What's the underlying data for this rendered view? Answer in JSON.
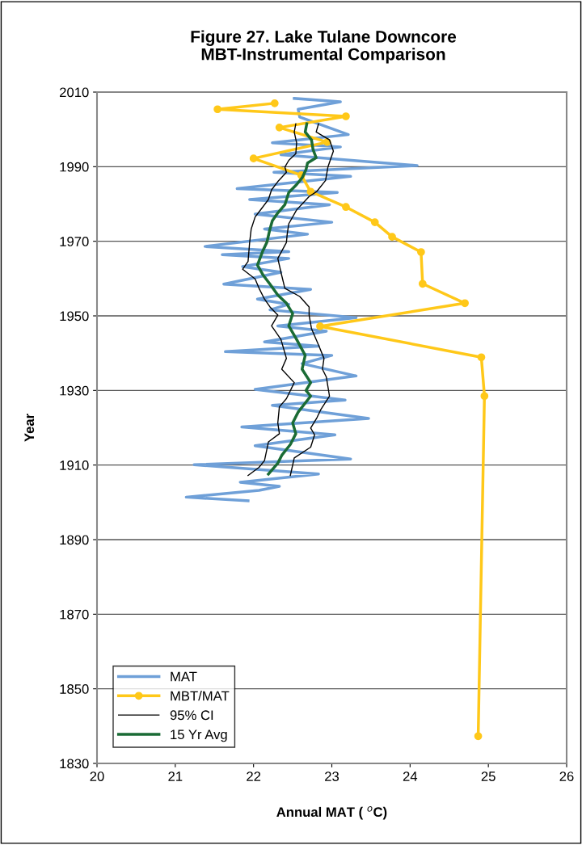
{
  "chart_data": {
    "type": "line",
    "title": "Figure 27. Lake Tulane Downcore\nMBT-Instrumental Comparison",
    "xlabel": "Annual MAT ( $^{o}$C)",
    "ylabel": "Year",
    "xlim": [
      20,
      26
    ],
    "xticks": [
      20,
      21,
      22,
      23,
      24,
      25,
      26
    ],
    "ylim": [
      1830,
      2010
    ],
    "yticks": [
      1830,
      1850,
      1870,
      1890,
      1910,
      1930,
      1950,
      1970,
      1990,
      2010
    ],
    "grid": "y",
    "legend": "bottom left",
    "series": [
      {
        "name": "MAT",
        "color": "#6fa0d8",
        "x": [
          22.52,
          23.11,
          22.57,
          22.59,
          23.21,
          22.24,
          23.11,
          22.35,
          24.09,
          22.26,
          23.24,
          21.79,
          23.07,
          21.95,
          22.97,
          22.02,
          23.0,
          22.14,
          22.69,
          21.38,
          22.45,
          21.6,
          22.45,
          21.86,
          22.35,
          21.62,
          22.73,
          22.05,
          22.45,
          22.21,
          23.31,
          22.31,
          22.93,
          22.14,
          22.83,
          21.64,
          23.0,
          22.62,
          23.31,
          22.02,
          23.17,
          22.24,
          23.47,
          21.85,
          23.04,
          22.02,
          23.24,
          21.24,
          22.83,
          21.83,
          22.33,
          22.07,
          21.14,
          21.93
        ],
        "values": [
          2008.3,
          2007.4,
          2005.4,
          2003.3,
          1998.6,
          1996.4,
          1995.3,
          1993.2,
          1990.3,
          1988.5,
          1987.4,
          1984.1,
          1983.1,
          1981.2,
          1979.8,
          1977.3,
          1975.1,
          1973.3,
          1971.9,
          1968.6,
          1967.2,
          1966.4,
          1965.4,
          1963.2,
          1961.7,
          1958.5,
          1957.1,
          1954.5,
          1953.1,
          1951.6,
          1949.5,
          1947.3,
          1945.9,
          1943.0,
          1941.9,
          1940.4,
          1939.4,
          1937.2,
          1933.9,
          1930.3,
          1927.4,
          1926.0,
          1922.5,
          1920.2,
          1918.1,
          1915.2,
          1911.6,
          1910.1,
          1907.6,
          1905.4,
          1904.3,
          1903.2,
          1901.4,
          1900.4
        ]
      },
      {
        "name": "MBT/MAT",
        "color": "#ffc819",
        "marker": "circle",
        "x": [
          22.27,
          21.54,
          23.18,
          22.33,
          22.94,
          22.0,
          22.61,
          22.73,
          23.18,
          23.55,
          23.77,
          24.14,
          24.16,
          24.7,
          22.85,
          24.91,
          24.95,
          24.87
        ],
        "values": [
          2007.0,
          2005.4,
          2003.5,
          2000.5,
          1996.6,
          1992.2,
          1987.7,
          1983.3,
          1979.2,
          1975.1,
          1971.2,
          1967.1,
          1958.6,
          1953.4,
          1947.2,
          1938.9,
          1928.5,
          1837.3
        ]
      },
      {
        "name": "95% CI",
        "color": "#000000",
        "x": [
          22.54,
          22.52,
          22.55,
          22.54,
          22.45,
          22.4,
          22.42,
          22.31,
          22.23,
          22.19,
          22.1,
          22.02,
          21.97,
          21.95,
          21.93,
          21.86,
          22.02,
          22.07,
          22.14,
          22.21,
          22.31,
          22.23,
          22.35,
          22.42,
          22.36,
          22.52,
          22.42,
          22.33,
          22.31,
          22.33,
          22.19,
          22.14,
          22.07,
          21.93
        ],
        "values": [
          2001.5,
          1999.3,
          1996.4,
          1993.5,
          1991.7,
          1989.9,
          1988.5,
          1986.0,
          1983.8,
          1981.2,
          1978.7,
          1976.5,
          1973.3,
          1969.7,
          1964.6,
          1962.5,
          1959.9,
          1957.4,
          1954.5,
          1952.4,
          1950.2,
          1947.3,
          1943.7,
          1938.6,
          1935.7,
          1932.1,
          1927.8,
          1925.6,
          1921.3,
          1918.4,
          1916.2,
          1911.2,
          1909.4,
          1907.2
        ]
      },
      {
        "color": "#000000",
        "x": [
          22.83,
          22.8,
          22.97,
          23.02,
          22.95,
          22.92,
          22.81,
          22.71,
          22.55,
          22.45,
          22.43,
          22.42,
          22.31,
          22.35,
          22.4,
          22.59,
          22.71,
          22.71,
          22.74,
          22.83,
          22.9,
          22.88,
          22.93,
          22.97,
          22.86,
          22.81,
          22.73,
          22.78,
          22.73,
          22.52,
          22.47
        ],
        "values": [
          2001.5,
          1999.3,
          1997.2,
          1994.2,
          1989.9,
          1986.3,
          1983.4,
          1982.0,
          1978.4,
          1974.7,
          1971.9,
          1969.7,
          1965.4,
          1961.7,
          1957.4,
          1955.2,
          1952.4,
          1950.2,
          1946.6,
          1942.2,
          1938.6,
          1935.7,
          1933.6,
          1928.5,
          1924.9,
          1922.7,
          1919.9,
          1918.1,
          1914.8,
          1911.9,
          1907.2
        ]
      },
      {
        "name": "15 Yr Avg",
        "color": "#1a6b35",
        "x": [
          22.68,
          22.66,
          22.74,
          22.76,
          22.8,
          22.69,
          22.67,
          22.62,
          22.55,
          22.45,
          22.4,
          22.31,
          22.24,
          22.21,
          22.17,
          22.12,
          22.05,
          22.12,
          22.21,
          22.31,
          22.42,
          22.5,
          22.45,
          22.55,
          22.66,
          22.62,
          22.73,
          22.67,
          22.73,
          22.57,
          22.5,
          22.54,
          22.47,
          22.36,
          22.31,
          22.19
        ],
        "values": [
          2001.5,
          1999.3,
          1997.2,
          1994.6,
          1992.4,
          1991.0,
          1989.2,
          1987.0,
          1985.2,
          1983.1,
          1979.8,
          1977.6,
          1975.5,
          1973.3,
          1969.7,
          1967.5,
          1963.6,
          1961.0,
          1958.5,
          1955.6,
          1953.4,
          1950.6,
          1947.3,
          1943.7,
          1939.4,
          1935.7,
          1932.1,
          1930.0,
          1928.5,
          1924.2,
          1921.3,
          1918.4,
          1915.5,
          1912.6,
          1910.5,
          1907.6
        ]
      }
    ]
  }
}
